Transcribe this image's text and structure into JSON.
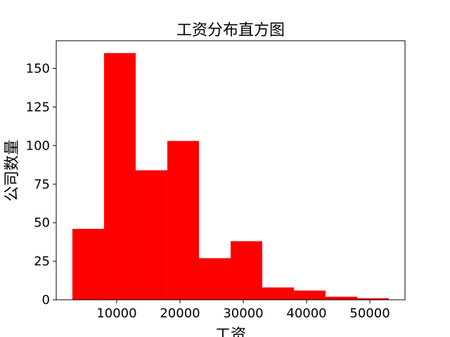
{
  "chart_data": {
    "type": "bar",
    "title": "工资分布直方图",
    "xlabel": "工资",
    "ylabel": "公司数量",
    "bar_color": "#ff0000",
    "bins": [
      {
        "start": 3000,
        "end": 8000,
        "count": 46
      },
      {
        "start": 8000,
        "end": 13000,
        "count": 160
      },
      {
        "start": 13000,
        "end": 18000,
        "count": 84
      },
      {
        "start": 18000,
        "end": 23000,
        "count": 103
      },
      {
        "start": 23000,
        "end": 28000,
        "count": 27
      },
      {
        "start": 28000,
        "end": 33000,
        "count": 38
      },
      {
        "start": 33000,
        "end": 38000,
        "count": 8
      },
      {
        "start": 38000,
        "end": 43000,
        "count": 6
      },
      {
        "start": 43000,
        "end": 48000,
        "count": 2
      },
      {
        "start": 48000,
        "end": 53000,
        "count": 1
      }
    ],
    "xlim": [
      450,
      55550
    ],
    "ylim": [
      0,
      168
    ],
    "xticks": [
      {
        "value": 10000,
        "label": "10000"
      },
      {
        "value": 20000,
        "label": "20000"
      },
      {
        "value": 30000,
        "label": "30000"
      },
      {
        "value": 40000,
        "label": "40000"
      },
      {
        "value": 50000,
        "label": "50000"
      }
    ],
    "yticks": [
      {
        "value": 0,
        "label": "0"
      },
      {
        "value": 25,
        "label": "25"
      },
      {
        "value": 50,
        "label": "50"
      },
      {
        "value": 75,
        "label": "75"
      },
      {
        "value": 100,
        "label": "100"
      },
      {
        "value": 125,
        "label": "125"
      },
      {
        "value": 150,
        "label": "150"
      }
    ],
    "grid": false,
    "legend": "none"
  }
}
